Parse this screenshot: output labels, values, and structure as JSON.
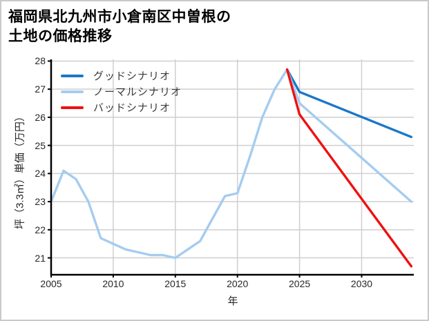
{
  "frame": {
    "background": "#ffffff",
    "border_color": "#c9c9c9"
  },
  "title": {
    "line1": "福岡県北九州市小倉南区中曽根の",
    "line2": "土地の価格推移"
  },
  "chart_data": {
    "type": "line",
    "title": "福岡県北九州市小倉南区中曽根の土地の価格推移",
    "xlabel": "年",
    "ylabel": "坪（3.3㎡）単価（万円）",
    "xlim": [
      2005,
      2034.2
    ],
    "ylim": [
      20.4,
      28.06
    ],
    "xticks": [
      2005,
      2010,
      2015,
      2020,
      2025,
      2030
    ],
    "yticks": [
      21,
      22,
      23,
      24,
      25,
      26,
      27,
      28
    ],
    "grid": true,
    "gridline_color": "#cfcfcf",
    "axis_color": "#000000",
    "tick_label_color": "#262626",
    "legend_position": "upper-left",
    "legend_frame": false,
    "series": [
      {
        "name": "グッドシナリオ",
        "role": "good-scenario",
        "color": "#1a77c8",
        "x": [
          2024,
          2025,
          2034
        ],
        "y": [
          27.7,
          26.9,
          25.3
        ]
      },
      {
        "name": "ノーマルシナリオ",
        "role": "normal-scenario",
        "color": "#a5ccf0",
        "x": [
          2005,
          2006,
          2007,
          2008,
          2009,
          2010,
          2011,
          2012,
          2013,
          2014,
          2015,
          2016,
          2017,
          2018,
          2019,
          2020,
          2021,
          2022,
          2023,
          2024,
          2025,
          2034
        ],
        "y": [
          23.0,
          24.1,
          23.8,
          23.0,
          21.7,
          21.5,
          21.3,
          21.2,
          21.1,
          21.1,
          21.0,
          21.3,
          21.6,
          22.4,
          23.2,
          23.3,
          24.6,
          26.0,
          27.0,
          27.7,
          26.5,
          23.0
        ]
      },
      {
        "name": "バッドシナリオ",
        "role": "bad-scenario",
        "color": "#ef1010",
        "x": [
          2024,
          2025,
          2034
        ],
        "y": [
          27.7,
          26.1,
          20.7
        ]
      }
    ]
  }
}
